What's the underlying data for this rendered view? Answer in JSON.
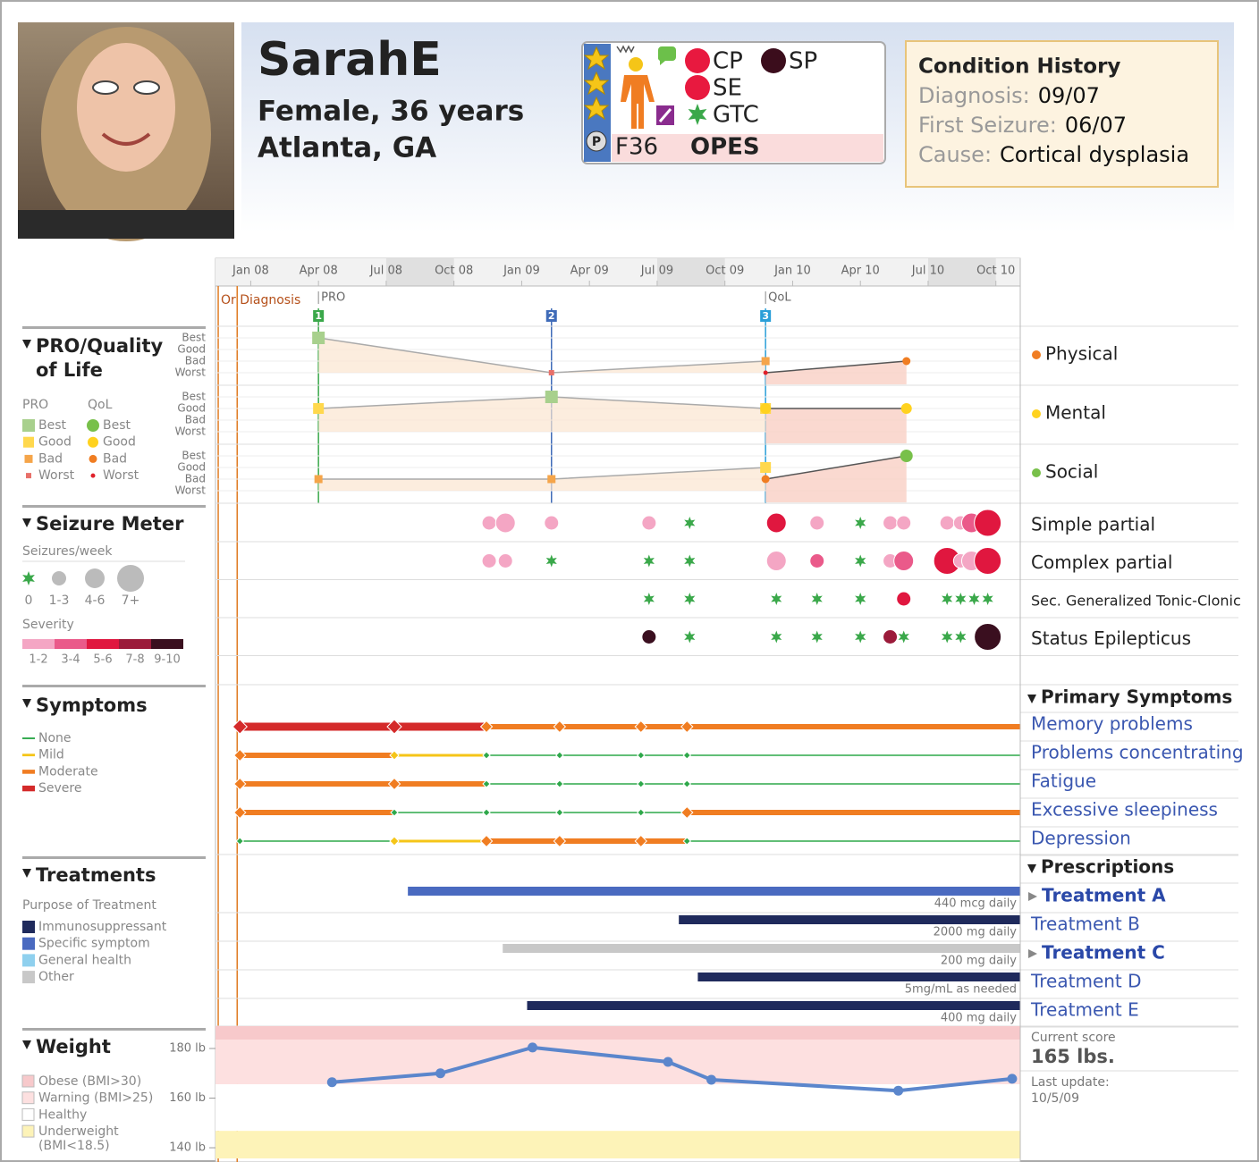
{
  "patient": {
    "name": "SarahE",
    "line1": "Female, 36 years",
    "line2": "Atlanta, GA"
  },
  "badge": {
    "code": "F36",
    "group": "OPES",
    "seizure_types": [
      {
        "name": "CP",
        "color": "#e8193f"
      },
      {
        "name": "SE",
        "color": "#e8193f"
      },
      {
        "name": "GTC",
        "color": "#3aa84a"
      },
      {
        "name": "SP",
        "color": "#3b0d1c"
      }
    ]
  },
  "condition_history": {
    "title": "Condition History",
    "rows": [
      {
        "label": "Diagnosis:",
        "value": "09/07"
      },
      {
        "label": "First Seizure:",
        "value": "06/07"
      },
      {
        "label": "Cause:",
        "value": "Cortical dysplasia"
      }
    ]
  },
  "timeline": {
    "xlim": [
      2007.87,
      2010.84
    ],
    "xticks": [
      {
        "value": 2008,
        "label": "Jan 08"
      },
      {
        "value": 2008.25,
        "label": "Apr 08"
      },
      {
        "value": 2008.5,
        "label": "Jul 08"
      },
      {
        "value": 2008.75,
        "label": "Oct 08"
      },
      {
        "value": 2009,
        "label": "Jan 09"
      },
      {
        "value": 2009.25,
        "label": "Apr 09"
      },
      {
        "value": 2009.5,
        "label": "Jul 09"
      },
      {
        "value": 2009.75,
        "label": "Oct 09"
      },
      {
        "value": 2010,
        "label": "Jan 10"
      },
      {
        "value": 2010.25,
        "label": "Apr 10"
      },
      {
        "value": 2010.5,
        "label": "Jul 10"
      },
      {
        "value": 2010.75,
        "label": "Oct 10"
      }
    ],
    "events": [
      {
        "label": "Or",
        "x": 2007.88,
        "color": "#e07b22"
      },
      {
        "label": "Diagnosis",
        "x": 2007.95,
        "color": "#e07b22"
      }
    ],
    "assessments": [
      {
        "label": "1",
        "x": 2008.25,
        "color": "#3aa84a"
      },
      {
        "label": "2",
        "x": 2009.11,
        "color": "#3f6bb8"
      },
      {
        "label": "3",
        "x": 2009.9,
        "color": "#2a9fd8"
      }
    ],
    "pro_label": "PRO",
    "qol_label": "QoL"
  },
  "pro": {
    "title_lines": [
      "PRO/Quality",
      "of Life"
    ],
    "levels": [
      "Worst",
      "Bad",
      "Good",
      "Best"
    ],
    "pro_heading": "PRO",
    "qol_heading": "QoL",
    "pro_colors": [
      "#e8706a",
      "#f5a54a",
      "#ffd84d",
      "#a8d08d"
    ],
    "qol_colors": [
      "#e0202a",
      "#f07d22",
      "#ffd21f",
      "#78c04a"
    ],
    "pro_x": [
      2008.25,
      2009.11,
      2009.9
    ],
    "rows": [
      {
        "name": "Physical",
        "color": "#f07d22",
        "pro": [
          3,
          0,
          1
        ],
        "qol_x": [
          2009.9,
          2010.42
        ],
        "qol": [
          0,
          1
        ]
      },
      {
        "name": "Mental",
        "color": "#ffd21f",
        "pro": [
          2,
          3,
          2
        ],
        "qol_x": [
          2009.9,
          2010.42
        ],
        "qol": [
          2,
          2
        ]
      },
      {
        "name": "Social",
        "color": "#78c04a",
        "pro": [
          1,
          1,
          2
        ],
        "qol_x": [
          2009.9,
          2010.42
        ],
        "qol": [
          1,
          3
        ]
      }
    ]
  },
  "seizures": {
    "title": "Seizure Meter",
    "freq_title": "Seizures/week",
    "freq_labels": [
      "0",
      "1-3",
      "4-6",
      "7+"
    ],
    "severity_title": "Severity",
    "severity_labels": [
      "1-2",
      "3-4",
      "5-6",
      "7-8",
      "9-10"
    ],
    "severity_colors": [
      "#f4a6c4",
      "#ea5a8a",
      "#e0173f",
      "#9b1b3a",
      "#3a0f1f"
    ],
    "star_color": "#3aa84a",
    "rows": [
      {
        "name": "Simple partial",
        "events": [
          [
            2008.88,
            1,
            0
          ],
          [
            2008.94,
            2,
            0
          ],
          [
            2009.11,
            1,
            0
          ],
          [
            2009.47,
            1,
            0
          ],
          [
            2009.62,
            0,
            null
          ],
          [
            2009.94,
            2,
            2
          ],
          [
            2010.09,
            1,
            0
          ],
          [
            2010.25,
            0,
            null
          ],
          [
            2010.36,
            1,
            0
          ],
          [
            2010.41,
            1,
            0
          ],
          [
            2010.57,
            1,
            0
          ],
          [
            2010.62,
            1,
            0
          ],
          [
            2010.66,
            2,
            1
          ],
          [
            2010.72,
            3,
            2
          ]
        ]
      },
      {
        "name": "Complex partial",
        "events": [
          [
            2008.88,
            1,
            0
          ],
          [
            2008.94,
            1,
            0
          ],
          [
            2009.11,
            0,
            null
          ],
          [
            2009.47,
            0,
            null
          ],
          [
            2009.62,
            0,
            null
          ],
          [
            2009.94,
            2,
            0
          ],
          [
            2010.09,
            1,
            1
          ],
          [
            2010.25,
            0,
            null
          ],
          [
            2010.36,
            1,
            0
          ],
          [
            2010.41,
            2,
            1
          ],
          [
            2010.57,
            3,
            2
          ],
          [
            2010.62,
            1,
            0
          ],
          [
            2010.66,
            2,
            0
          ],
          [
            2010.72,
            3,
            2
          ]
        ]
      },
      {
        "name": "Sec. Generalized Tonic-Clonic",
        "events": [
          [
            2009.47,
            0,
            null
          ],
          [
            2009.62,
            0,
            null
          ],
          [
            2009.94,
            0,
            null
          ],
          [
            2010.09,
            0,
            null
          ],
          [
            2010.25,
            0,
            null
          ],
          [
            2010.41,
            1,
            2
          ],
          [
            2010.57,
            0,
            null
          ],
          [
            2010.62,
            0,
            null
          ],
          [
            2010.67,
            0,
            null
          ],
          [
            2010.72,
            0,
            null
          ]
        ]
      },
      {
        "name": "Status Epilepticus",
        "events": [
          [
            2009.47,
            1,
            4
          ],
          [
            2009.62,
            0,
            null
          ],
          [
            2009.94,
            0,
            null
          ],
          [
            2010.09,
            0,
            null
          ],
          [
            2010.25,
            0,
            null
          ],
          [
            2010.36,
            1,
            3
          ],
          [
            2010.41,
            0,
            null
          ],
          [
            2010.57,
            0,
            null
          ],
          [
            2010.62,
            0,
            null
          ],
          [
            2010.72,
            3,
            4
          ]
        ]
      }
    ]
  },
  "symptoms": {
    "title": "Symptoms",
    "list_title": "Primary Symptoms",
    "levels": [
      "None",
      "Mild",
      "Moderate",
      "Severe"
    ],
    "colors": [
      "#2ea84a",
      "#f5c518",
      "#f07d22",
      "#d42a2a"
    ],
    "x": [
      2007.96,
      2008.53,
      2008.87,
      2009.14,
      2009.44,
      2009.61
    ],
    "rows": [
      {
        "name": "Memory problems",
        "levels": [
          3,
          3,
          2,
          2,
          2,
          2
        ]
      },
      {
        "name": "Problems concentrating",
        "levels": [
          2,
          1,
          0,
          0,
          0,
          0
        ]
      },
      {
        "name": "Fatigue",
        "levels": [
          2,
          2,
          0,
          0,
          0,
          0
        ]
      },
      {
        "name": "Excessive sleepiness",
        "levels": [
          2,
          0,
          0,
          0,
          0,
          2
        ]
      },
      {
        "name": "Depression",
        "levels": [
          0,
          1,
          2,
          2,
          2,
          0
        ]
      }
    ]
  },
  "treatments": {
    "title": "Treatments",
    "purpose_title": "Purpose of Treatment",
    "list_title": "Prescriptions",
    "purposes": [
      {
        "name": "Immunosuppressant",
        "color": "#1f2a5c"
      },
      {
        "name": "Specific symptom",
        "color": "#4a6ac0"
      },
      {
        "name": "General health",
        "color": "#8fd0ee"
      },
      {
        "name": "Other",
        "color": "#c8c8c8"
      }
    ],
    "rows": [
      {
        "name": "Treatment A",
        "start": 2008.58,
        "purpose": 1,
        "dose": "440 mcg daily",
        "expandable": true
      },
      {
        "name": "Treatment B",
        "start": 2009.58,
        "purpose": 0,
        "dose": "2000 mg daily",
        "expandable": false
      },
      {
        "name": "Treatment C",
        "start": 2008.93,
        "purpose": 3,
        "dose": "200 mg daily",
        "expandable": true
      },
      {
        "name": "Treatment D",
        "start": 2009.65,
        "purpose": 0,
        "dose": "5mg/mL as needed",
        "expandable": false
      },
      {
        "name": "Treatment E",
        "start": 2009.02,
        "purpose": 0,
        "dose": "400 mg daily",
        "expandable": false
      }
    ]
  },
  "weight": {
    "title": "Weight",
    "ylim": [
      135.7,
      189
    ],
    "yticks": [
      {
        "value": 140,
        "label": "140 lb"
      },
      {
        "value": 160,
        "label": "160 lb"
      },
      {
        "value": 180,
        "label": "180 lb"
      }
    ],
    "bands": [
      {
        "name": "Obese (BMI>30)",
        "from": 183.6,
        "to": 189,
        "color": "#f7c9cb"
      },
      {
        "name": "Warning (BMI>25)",
        "from": 165.6,
        "to": 183.6,
        "color": "#fde0e0"
      },
      {
        "name": "Healthy",
        "from": 146.8,
        "to": 165.6,
        "color": "#ffffff"
      },
      {
        "name": "Underweight",
        "note": "(BMI<18.5)",
        "from": 135.7,
        "to": 146.8,
        "color": "#fdf3b8"
      }
    ],
    "x": [
      2008.3,
      2008.7,
      2009.04,
      2009.54,
      2009.7,
      2010.39,
      2010.81
    ],
    "values": [
      166.4,
      170,
      180.4,
      174.6,
      167.4,
      163,
      167.8
    ],
    "color": "#5b86cc",
    "current_label": "Current score",
    "current_value": "165 lbs.",
    "update_label": "Last update:",
    "update_value": "10/5/09"
  }
}
